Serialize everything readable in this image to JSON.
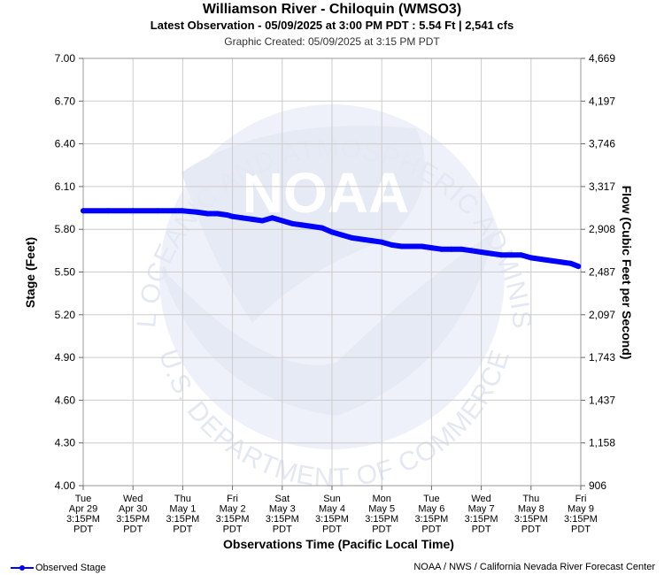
{
  "title": "Williamson River - Chiloquin (WMSO3)",
  "subtitle": "Latest Observation - 05/09/2025 at 3:00 PM PDT : 5.54 Ft | 2,541 cfs",
  "created": "Graphic Created: 05/09/2025 at 3:15 PM PDT",
  "credit": "NOAA / NWS / California Nevada River Forecast Center",
  "watermark": {
    "logo_text": "NOAA",
    "ring_top": "NATIONAL OCEANIC AND ATMOSPHERIC ADMINISTRATION",
    "ring_bottom": "U.S. DEPARTMENT OF COMMERCE"
  },
  "colors": {
    "series": "#0000ff",
    "grid": "#cccccc",
    "watermark": "#e8ecf6"
  },
  "chart_data": {
    "type": "line",
    "xlabel": "Observations Time (Pacific Local Time)",
    "ylabel": "Stage (Feet)",
    "y2label": "Flow (Cubic Feet per Second)",
    "ylim": [
      4.0,
      7.0
    ],
    "xlim": [
      0,
      10
    ],
    "grid": true,
    "legend": "bottom-left",
    "y_ticks": [
      "7.00",
      "6.70",
      "6.40",
      "6.10",
      "5.80",
      "5.50",
      "5.20",
      "4.90",
      "4.60",
      "4.30",
      "4.00"
    ],
    "y2_ticks": [
      "4,669",
      "4,197",
      "3,746",
      "3,317",
      "2,908",
      "2,487",
      "2,097",
      "1,743",
      "1,437",
      "1,158",
      "906"
    ],
    "x_ticks": [
      [
        "Tue",
        "Apr 29",
        "3:15PM",
        "PDT"
      ],
      [
        "Wed",
        "Apr 30",
        "3:15PM",
        "PDT"
      ],
      [
        "Thu",
        "May 1",
        "3:15PM",
        "PDT"
      ],
      [
        "Fri",
        "May 2",
        "3:15PM",
        "PDT"
      ],
      [
        "Sat",
        "May 3",
        "3:15PM",
        "PDT"
      ],
      [
        "Sun",
        "May 4",
        "3:15PM",
        "PDT"
      ],
      [
        "Mon",
        "May 5",
        "3:15PM",
        "PDT"
      ],
      [
        "Tue",
        "May 6",
        "3:15PM",
        "PDT"
      ],
      [
        "Wed",
        "May 7",
        "3:15PM",
        "PDT"
      ],
      [
        "Thu",
        "May 8",
        "3:15PM",
        "PDT"
      ],
      [
        "Fri",
        "May 9",
        "3:15PM",
        "PDT"
      ]
    ],
    "series": [
      {
        "name": "Observed Stage",
        "x": [
          0,
          0.5,
          1.0,
          1.5,
          2.0,
          2.3,
          2.5,
          2.7,
          2.9,
          3.0,
          3.2,
          3.4,
          3.6,
          3.8,
          4.0,
          4.2,
          4.4,
          4.6,
          4.8,
          5.0,
          5.2,
          5.4,
          5.6,
          5.8,
          6.0,
          6.2,
          6.4,
          6.6,
          6.8,
          7.0,
          7.2,
          7.4,
          7.6,
          7.8,
          8.0,
          8.2,
          8.4,
          8.6,
          8.8,
          9.0,
          9.2,
          9.4,
          9.6,
          9.8,
          9.95
        ],
        "y": [
          5.93,
          5.93,
          5.93,
          5.93,
          5.93,
          5.92,
          5.91,
          5.91,
          5.9,
          5.89,
          5.88,
          5.87,
          5.86,
          5.88,
          5.86,
          5.84,
          5.83,
          5.82,
          5.81,
          5.78,
          5.76,
          5.74,
          5.73,
          5.72,
          5.71,
          5.69,
          5.68,
          5.68,
          5.68,
          5.67,
          5.66,
          5.66,
          5.66,
          5.65,
          5.64,
          5.63,
          5.62,
          5.62,
          5.62,
          5.6,
          5.59,
          5.58,
          5.57,
          5.56,
          5.54
        ]
      }
    ]
  }
}
